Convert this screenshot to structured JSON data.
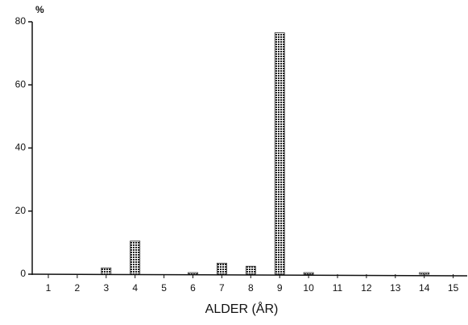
{
  "chart_data": {
    "type": "bar",
    "y_label": "%",
    "x_label": "ALDER (ÅR)",
    "categories": [
      "1",
      "2",
      "3",
      "4",
      "5",
      "6",
      "7",
      "8",
      "9",
      "10",
      "11",
      "12",
      "13",
      "14",
      "15"
    ],
    "values": [
      0,
      0,
      2,
      10.5,
      0,
      0.5,
      3.5,
      2.5,
      76.5,
      0.5,
      0,
      0,
      0,
      0.5,
      0
    ],
    "color": "#222",
    "ylim": [
      0,
      80
    ],
    "yticks": [
      0,
      20,
      40,
      60,
      80
    ],
    "grid": false
  }
}
